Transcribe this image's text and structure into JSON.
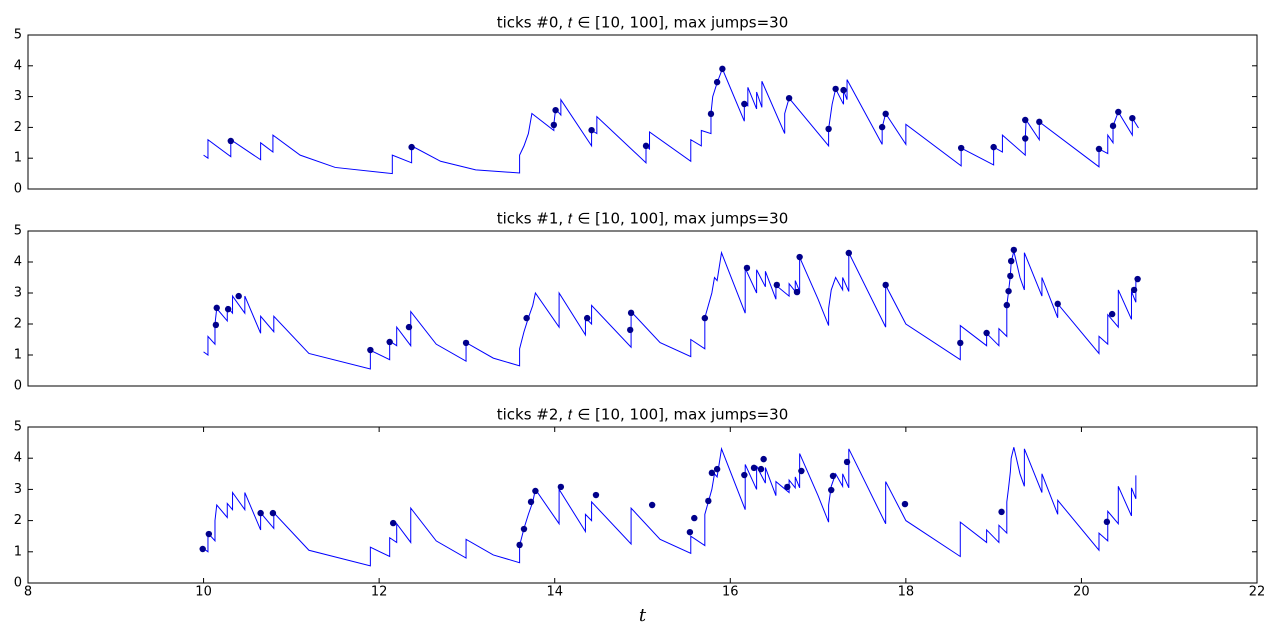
{
  "chart_data": [
    {
      "type": "line",
      "title": "ticks #0, 𝑡 ∈ [10, 100], max jumps=30",
      "xlim": [
        8,
        22
      ],
      "ylim": [
        0,
        5
      ],
      "yticks": [
        0,
        1,
        2,
        3,
        4,
        5
      ],
      "series": [
        {
          "type": "line",
          "color": "#0000ff",
          "x": [
            10.0,
            10.05,
            10.05,
            10.31,
            10.31,
            10.65,
            10.65,
            10.79,
            10.79,
            11.1,
            11.5,
            12.15,
            12.15,
            12.37,
            12.37,
            12.7,
            13.1,
            13.6,
            13.6,
            13.65,
            13.7,
            13.74,
            13.99,
            13.99,
            14.01,
            14.07,
            14.07,
            14.42,
            14.42,
            14.48,
            14.48,
            15.04,
            15.04,
            15.08,
            15.08,
            15.55,
            15.55,
            15.67,
            15.67,
            15.78,
            15.78,
            15.8,
            15.85,
            15.91,
            16.16,
            16.16,
            16.2,
            16.2,
            16.3,
            16.3,
            16.36,
            16.36,
            16.62,
            16.62,
            16.67,
            17.12,
            17.12,
            17.16,
            17.2,
            17.29,
            17.29,
            17.33,
            17.33,
            17.73,
            17.73,
            17.77,
            18.0,
            18.0,
            18.63,
            18.63,
            19.0,
            19.0,
            19.1,
            19.1,
            19.36,
            19.36,
            19.37,
            19.52,
            19.52,
            20.2,
            20.2,
            20.3,
            20.3,
            20.36,
            20.36,
            20.42,
            20.58,
            20.58,
            20.65
          ],
          "values": [
            1.1,
            1.0,
            1.6,
            1.05,
            1.6,
            0.95,
            1.5,
            1.2,
            1.75,
            1.1,
            0.7,
            0.5,
            1.1,
            0.85,
            1.4,
            0.9,
            0.62,
            0.52,
            1.1,
            1.4,
            1.8,
            2.45,
            1.9,
            2.1,
            2.6,
            2.4,
            2.9,
            1.4,
            1.9,
            1.8,
            2.35,
            0.85,
            1.4,
            1.3,
            1.85,
            0.9,
            1.6,
            1.4,
            1.9,
            1.8,
            2.45,
            3.0,
            3.45,
            3.9,
            2.2,
            2.75,
            2.7,
            3.3,
            2.6,
            3.15,
            2.65,
            3.5,
            1.8,
            2.45,
            2.95,
            1.4,
            1.95,
            2.75,
            3.25,
            2.75,
            3.2,
            2.9,
            3.55,
            1.45,
            2.0,
            2.45,
            1.45,
            2.1,
            0.75,
            1.33,
            0.78,
            1.36,
            1.2,
            1.75,
            1.1,
            1.64,
            2.24,
            1.6,
            2.18,
            0.72,
            1.3,
            1.15,
            1.75,
            1.5,
            2.05,
            2.5,
            1.75,
            2.3,
            1.98
          ]
        },
        {
          "type": "scatter",
          "color": "#00008b",
          "x": [
            10.31,
            12.37,
            13.99,
            14.01,
            14.42,
            15.04,
            15.78,
            15.85,
            15.91,
            16.16,
            16.67,
            17.12,
            17.2,
            17.29,
            17.73,
            17.77,
            18.63,
            19.0,
            19.36,
            19.36,
            19.52,
            20.2,
            20.36,
            20.42,
            20.58
          ],
          "values": [
            1.56,
            1.36,
            2.08,
            2.56,
            1.91,
            1.4,
            2.44,
            3.47,
            3.9,
            2.76,
            2.95,
            1.95,
            3.25,
            3.21,
            2.01,
            2.44,
            1.33,
            1.36,
            1.64,
            2.24,
            2.18,
            1.3,
            2.05,
            2.5,
            2.3
          ]
        }
      ]
    },
    {
      "type": "line",
      "title": "ticks #1, 𝑡 ∈ [10, 100], max jumps=30",
      "xlim": [
        8,
        22
      ],
      "ylim": [
        0,
        5
      ],
      "yticks": [
        0,
        1,
        2,
        3,
        4,
        5
      ],
      "series": [
        {
          "type": "line",
          "color": "#0000ff",
          "x": [
            10.0,
            10.05,
            10.05,
            10.13,
            10.13,
            10.15,
            10.27,
            10.27,
            10.33,
            10.33,
            10.47,
            10.47,
            10.65,
            10.65,
            10.8,
            10.8,
            11.2,
            11.9,
            11.9,
            12.12,
            12.12,
            12.2,
            12.2,
            12.36,
            12.36,
            12.65,
            12.99,
            12.99,
            13.3,
            13.6,
            13.6,
            13.65,
            13.7,
            13.75,
            13.78,
            14.05,
            14.05,
            14.35,
            14.35,
            14.42,
            14.42,
            14.87,
            14.87,
            15.2,
            15.55,
            15.55,
            15.71,
            15.71,
            15.75,
            15.79,
            15.82,
            15.85,
            15.9,
            16.17,
            16.17,
            16.3,
            16.3,
            16.4,
            16.4,
            16.52,
            16.52,
            16.67,
            16.67,
            16.74,
            16.74,
            16.79,
            16.79,
            17.0,
            17.12,
            17.12,
            17.15,
            17.2,
            17.28,
            17.28,
            17.35,
            17.35,
            17.77,
            17.77,
            18.0,
            18.62,
            18.62,
            18.92,
            18.92,
            19.06,
            19.06,
            19.15,
            19.15,
            19.17,
            19.19,
            19.2,
            19.23,
            19.3,
            19.35,
            19.35,
            19.55,
            19.55,
            19.73,
            19.73,
            20.2,
            20.2,
            20.3,
            20.3,
            20.42,
            20.42,
            20.57,
            20.57,
            20.62,
            20.62
          ],
          "values": [
            1.1,
            1.0,
            1.6,
            1.35,
            2.0,
            2.5,
            2.1,
            2.55,
            2.35,
            2.9,
            2.35,
            2.9,
            1.7,
            2.25,
            1.75,
            2.25,
            1.05,
            0.55,
            1.15,
            0.85,
            1.45,
            1.3,
            1.9,
            1.3,
            2.4,
            1.35,
            0.8,
            1.4,
            0.9,
            0.65,
            1.2,
            1.75,
            2.2,
            2.6,
            3.0,
            1.9,
            3.0,
            1.65,
            2.2,
            2.0,
            2.6,
            1.25,
            2.4,
            1.4,
            0.95,
            1.5,
            1.2,
            2.2,
            2.6,
            3.0,
            3.5,
            3.4,
            4.3,
            2.35,
            3.8,
            3.0,
            3.75,
            3.2,
            3.7,
            2.8,
            3.25,
            2.9,
            3.3,
            3.05,
            3.4,
            3.05,
            4.15,
            2.8,
            1.95,
            2.5,
            3.1,
            3.5,
            3.1,
            3.5,
            3.05,
            4.3,
            1.9,
            3.25,
            2.0,
            0.85,
            1.95,
            1.3,
            1.7,
            1.3,
            1.85,
            1.6,
            2.6,
            3.05,
            3.55,
            4.0,
            4.35,
            3.5,
            3.1,
            4.3,
            2.9,
            3.5,
            2.2,
            2.65,
            1.05,
            1.6,
            1.35,
            2.3,
            1.9,
            3.1,
            2.15,
            3.05,
            2.7,
            3.45
          ]
        },
        {
          "type": "scatter",
          "color": "#00008b",
          "x": [
            10.14,
            10.15,
            10.28,
            10.4,
            11.9,
            12.12,
            12.34,
            12.99,
            13.68,
            14.37,
            14.86,
            14.87,
            15.71,
            16.19,
            16.53,
            16.76,
            16.79,
            17.35,
            17.77,
            18.62,
            18.92,
            19.15,
            19.17,
            19.19,
            19.2,
            19.23,
            19.73,
            20.35,
            20.6,
            20.64
          ],
          "values": [
            1.97,
            2.52,
            2.48,
            2.9,
            1.16,
            1.42,
            1.9,
            1.39,
            2.19,
            2.19,
            1.81,
            2.36,
            2.19,
            3.81,
            3.26,
            3.03,
            4.16,
            4.29,
            3.26,
            1.39,
            1.71,
            2.61,
            3.06,
            3.55,
            4.03,
            4.39,
            2.65,
            2.32,
            3.1,
            3.45
          ]
        }
      ]
    },
    {
      "type": "line",
      "title": "ticks #2, 𝑡 ∈ [10, 100], max jumps=30",
      "xlabel": "t",
      "xlim": [
        8,
        22
      ],
      "ylim": [
        0,
        5
      ],
      "yticks": [
        0,
        1,
        2,
        3,
        4,
        5
      ],
      "xticks": [
        8,
        10,
        12,
        14,
        16,
        18,
        20,
        22
      ],
      "series": [
        {
          "type": "line",
          "color": "#0000ff",
          "x": [
            10.0,
            10.05,
            10.05,
            10.13,
            10.13,
            10.15,
            10.27,
            10.27,
            10.33,
            10.33,
            10.47,
            10.47,
            10.65,
            10.65,
            10.8,
            10.8,
            11.2,
            11.9,
            11.9,
            12.12,
            12.12,
            12.2,
            12.2,
            12.36,
            12.36,
            12.65,
            12.99,
            12.99,
            13.3,
            13.6,
            13.6,
            13.65,
            13.7,
            13.75,
            13.78,
            14.05,
            14.05,
            14.35,
            14.35,
            14.42,
            14.42,
            14.87,
            14.87,
            15.2,
            15.55,
            15.55,
            15.71,
            15.71,
            15.75,
            15.79,
            15.82,
            15.85,
            15.9,
            16.17,
            16.17,
            16.3,
            16.3,
            16.4,
            16.4,
            16.52,
            16.52,
            16.67,
            16.67,
            16.74,
            16.74,
            16.79,
            16.79,
            17.0,
            17.12,
            17.12,
            17.15,
            17.2,
            17.28,
            17.28,
            17.35,
            17.35,
            17.77,
            17.77,
            18.0,
            18.62,
            18.62,
            18.92,
            18.92,
            19.06,
            19.06,
            19.15,
            19.15,
            19.17,
            19.19,
            19.2,
            19.23,
            19.3,
            19.35,
            19.35,
            19.55,
            19.55,
            19.73,
            19.73,
            20.2,
            20.2,
            20.3,
            20.3,
            20.42,
            20.42,
            20.57,
            20.57,
            20.62,
            20.62
          ],
          "values": [
            1.1,
            1.0,
            1.6,
            1.35,
            2.0,
            2.5,
            2.1,
            2.55,
            2.35,
            2.9,
            2.35,
            2.9,
            1.7,
            2.25,
            1.75,
            2.25,
            1.05,
            0.55,
            1.15,
            0.85,
            1.45,
            1.3,
            1.9,
            1.3,
            2.4,
            1.35,
            0.8,
            1.4,
            0.9,
            0.65,
            1.2,
            1.75,
            2.2,
            2.6,
            3.0,
            1.9,
            3.0,
            1.65,
            2.2,
            2.0,
            2.6,
            1.25,
            2.4,
            1.4,
            0.95,
            1.5,
            1.2,
            2.2,
            2.6,
            3.0,
            3.5,
            3.4,
            4.3,
            2.35,
            3.8,
            3.0,
            3.75,
            3.2,
            3.7,
            2.8,
            3.25,
            2.9,
            3.3,
            3.05,
            3.4,
            3.05,
            4.15,
            2.8,
            1.95,
            2.5,
            3.1,
            3.5,
            3.1,
            3.5,
            3.05,
            4.3,
            1.9,
            3.25,
            2.0,
            0.85,
            1.95,
            1.3,
            1.7,
            1.3,
            1.85,
            1.6,
            2.6,
            3.05,
            3.55,
            4.0,
            4.35,
            3.5,
            3.1,
            4.3,
            2.9,
            3.5,
            2.2,
            2.65,
            1.05,
            1.6,
            1.35,
            2.3,
            1.9,
            3.1,
            2.15,
            3.05,
            2.7,
            3.45
          ]
        },
        {
          "type": "scatter",
          "color": "#00008b",
          "x": [
            9.99,
            10.06,
            10.65,
            10.79,
            12.16,
            13.6,
            13.65,
            13.73,
            13.78,
            14.07,
            14.47,
            15.11,
            15.54,
            15.59,
            15.75,
            15.79,
            15.85,
            16.16,
            16.27,
            16.35,
            16.38,
            16.65,
            16.81,
            17.15,
            17.17,
            17.33,
            17.99,
            19.09,
            20.29
          ],
          "values": [
            1.09,
            1.57,
            2.24,
            2.24,
            1.92,
            1.22,
            1.73,
            2.6,
            2.95,
            3.08,
            2.82,
            2.5,
            1.63,
            2.08,
            2.63,
            3.53,
            3.65,
            3.46,
            3.69,
            3.65,
            3.97,
            3.08,
            3.59,
            2.98,
            3.43,
            3.88,
            2.53,
            2.28,
            1.96
          ]
        }
      ]
    }
  ]
}
